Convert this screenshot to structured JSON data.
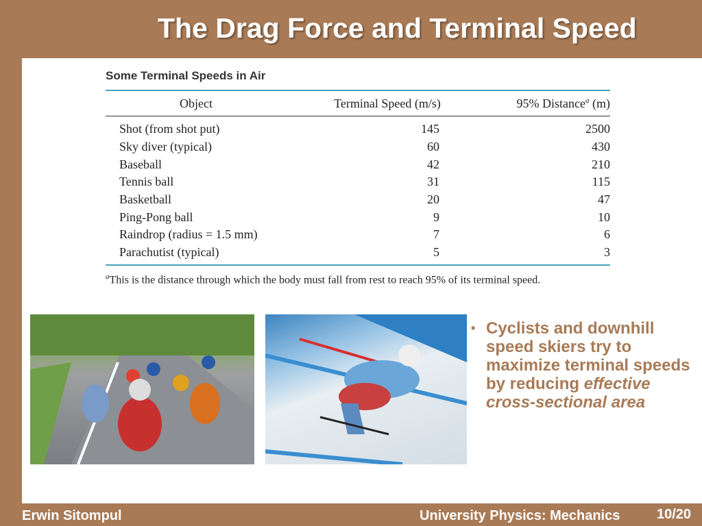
{
  "slide": {
    "title": "The Drag Force and Terminal Speed"
  },
  "table": {
    "caption": "Some Terminal Speeds in Air",
    "headers": {
      "object": "Object",
      "speed": "Terminal Speed (m/s)",
      "distance": "95% Distance",
      "distance_sup": "a",
      "distance_unit": " (m)"
    },
    "rows": [
      {
        "object": "Shot (from shot put)",
        "speed": "145",
        "distance": "2500"
      },
      {
        "object": "Sky diver (typical)",
        "speed": "60",
        "distance": "430"
      },
      {
        "object": "Baseball",
        "speed": "42",
        "distance": "210"
      },
      {
        "object": "Tennis ball",
        "speed": "31",
        "distance": "115"
      },
      {
        "object": "Basketball",
        "speed": "20",
        "distance": "47"
      },
      {
        "object": "Ping-Pong ball",
        "speed": "9",
        "distance": "10"
      },
      {
        "object": "Raindrop (radius = 1.5 mm)",
        "speed": "7",
        "distance": "6"
      },
      {
        "object": "Parachutist (typical)",
        "speed": "5",
        "distance": "3"
      }
    ],
    "footnote_sup": "a",
    "footnote": "This is the distance through which the body must fall from rest to reach 95% of its terminal speed."
  },
  "bullet": {
    "marker": "•",
    "text_plain": "Cyclists and downhill speed skiers try to maximize terminal speeds by reducing",
    "text_emph": "effective cross-sectional area"
  },
  "footer": {
    "author": "Erwin Sitompul",
    "course": "University Physics: Mechanics",
    "page": "10/20"
  },
  "colors": {
    "frame": "#a87a56",
    "accent_rule": "#4aa0b8",
    "bullet_text": "#a87a56"
  }
}
